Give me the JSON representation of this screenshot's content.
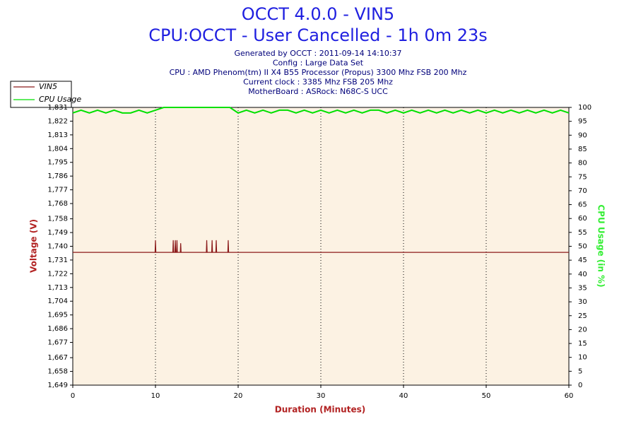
{
  "chart_data": {
    "type": "line",
    "title": "OCCT 4.0.0 - VIN5",
    "subtitle": "CPU:OCCT - User Cancelled - 1h 0m 23s",
    "info": [
      "Generated by OCCT : 2011-09-14 14:10:37",
      "Config : Large Data Set",
      "CPU : AMD Phenom(tm) II X4 B55 Processor (Propus) 3300 Mhz FSB 200 Mhz",
      "Current clock : 3385 Mhz FSB 205 Mhz",
      "MotherBoard : ASRock: N68C-S UCC"
    ],
    "xlabel": "Duration (Minutes)",
    "ylabel": "Voltage (V)",
    "y2label": "CPU Usage (in %)",
    "legend": "top-left",
    "grid": true,
    "xlim": [
      0,
      60
    ],
    "xticks": [
      0,
      10,
      20,
      30,
      40,
      50,
      60
    ],
    "ylim": [
      1.649,
      1.831
    ],
    "yticks": [
      {
        "value": 1.649,
        "label": "1,649"
      },
      {
        "value": 1.658,
        "label": "1,658"
      },
      {
        "value": 1.667,
        "label": "1,667"
      },
      {
        "value": 1.677,
        "label": "1,677"
      },
      {
        "value": 1.686,
        "label": "1,686"
      },
      {
        "value": 1.695,
        "label": "1,695"
      },
      {
        "value": 1.704,
        "label": "1,704"
      },
      {
        "value": 1.713,
        "label": "1,713"
      },
      {
        "value": 1.722,
        "label": "1,722"
      },
      {
        "value": 1.731,
        "label": "1,731"
      },
      {
        "value": 1.74,
        "label": "1,740"
      },
      {
        "value": 1.749,
        "label": "1,749"
      },
      {
        "value": 1.758,
        "label": "1,758"
      },
      {
        "value": 1.768,
        "label": "1,768"
      },
      {
        "value": 1.777,
        "label": "1,777"
      },
      {
        "value": 1.786,
        "label": "1,786"
      },
      {
        "value": 1.795,
        "label": "1,795"
      },
      {
        "value": 1.804,
        "label": "1,804"
      },
      {
        "value": 1.813,
        "label": "1,813"
      },
      {
        "value": 1.822,
        "label": "1,822"
      },
      {
        "value": 1.831,
        "label": "1,831"
      }
    ],
    "y2lim": [
      0,
      100
    ],
    "y2ticks": [
      0,
      5,
      10,
      15,
      20,
      25,
      30,
      35,
      40,
      45,
      50,
      55,
      60,
      65,
      70,
      75,
      80,
      85,
      90,
      95,
      100
    ],
    "series": [
      {
        "name": "VIN5",
        "color": "#8b1a1a",
        "x": [
          0,
          9.95,
          10,
          10.05,
          12.1,
          12.15,
          12.2,
          12.35,
          12.4,
          12.45,
          12.55,
          12.6,
          12.65,
          13.0,
          13.05,
          13.1,
          16.15,
          16.2,
          16.25,
          16.8,
          16.85,
          16.9,
          17.3,
          17.35,
          17.4,
          18.75,
          18.8,
          18.85,
          60
        ],
        "values": [
          1.736,
          1.736,
          1.744,
          1.736,
          1.736,
          1.744,
          1.736,
          1.736,
          1.744,
          1.736,
          1.736,
          1.744,
          1.736,
          1.736,
          1.742,
          1.736,
          1.736,
          1.744,
          1.736,
          1.736,
          1.744,
          1.736,
          1.736,
          1.744,
          1.736,
          1.736,
          1.744,
          1.736,
          1.736
        ]
      },
      {
        "name": "CPU Usage",
        "color": "#00e000",
        "axis": "y2",
        "x": [
          0,
          1,
          2,
          3,
          4,
          5,
          6,
          7,
          8,
          9,
          10,
          11,
          12,
          13,
          14,
          15,
          16,
          17,
          18,
          19,
          20,
          21,
          22,
          23,
          24,
          25,
          26,
          27,
          28,
          29,
          30,
          31,
          32,
          33,
          34,
          35,
          36,
          37,
          38,
          39,
          40,
          41,
          42,
          43,
          44,
          45,
          46,
          47,
          48,
          49,
          50,
          51,
          52,
          53,
          54,
          55,
          56,
          57,
          58,
          59,
          60
        ],
        "values": [
          98,
          99,
          98,
          99,
          98,
          99,
          98,
          98,
          99,
          98,
          99,
          100,
          100,
          100,
          100,
          100,
          100,
          100,
          100,
          100,
          98,
          99,
          98,
          99,
          98,
          99,
          99,
          98,
          99,
          98,
          99,
          98,
          99,
          98,
          99,
          98,
          99,
          99,
          98,
          99,
          98,
          99,
          98,
          99,
          98,
          99,
          98,
          99,
          98,
          99,
          98,
          99,
          98,
          99,
          98,
          99,
          98,
          99,
          98,
          99,
          98
        ]
      }
    ]
  }
}
